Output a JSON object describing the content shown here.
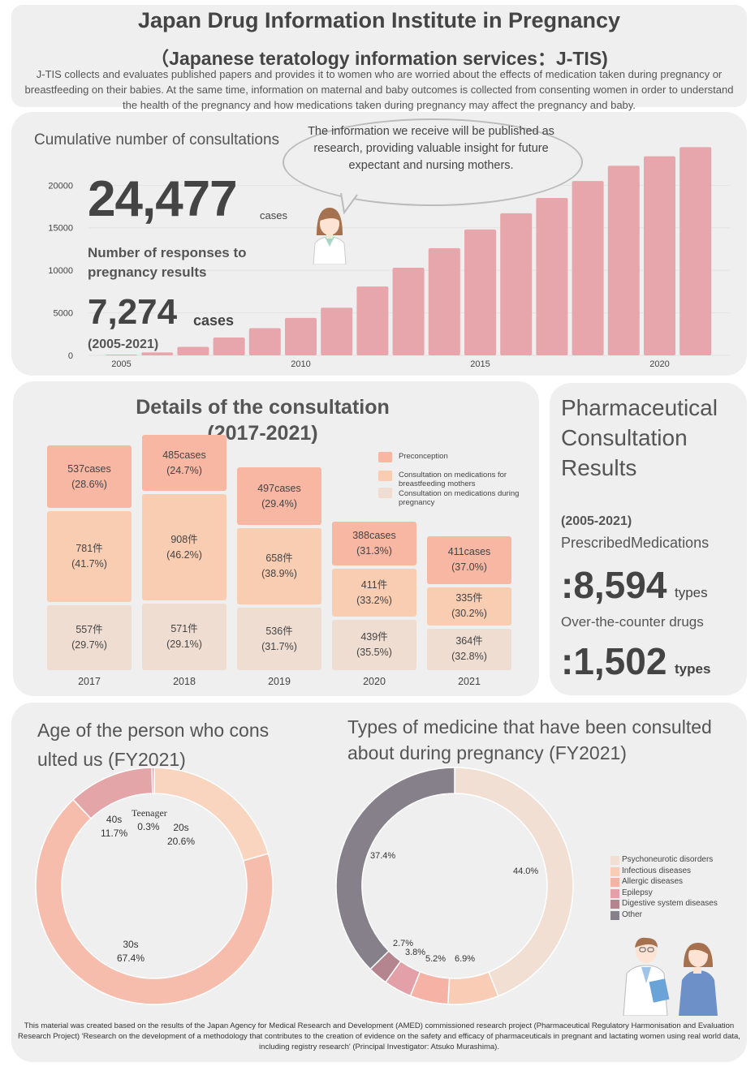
{
  "header": {
    "title": "Japan Drug Information Institute in Pregnancy",
    "subtitle": "（Japanese teratology information services：J-TIS)",
    "description": "J-TIS collects and evaluates published papers and provides it to women who are worried about the effects of medication taken during pregnancy or breastfeeding on their babies. At the same time, information on maternal and baby outcomes is collected from consenting women in order to understand the health of the pregnancy and how medications taken during pregnancy may affect the pregnancy and baby."
  },
  "cumulative": {
    "title": "Cumulative number of consultations",
    "total": "24,477",
    "total_unit": "cases",
    "responses_label": "Number of responses to pregnancy results",
    "responses": "7,274",
    "responses_unit": "cases",
    "range": "(2005-2021)",
    "bubble": "The information we receive will be published as research, providing valuable insight for future expectant and nursing mothers."
  },
  "chart_data": [
    {
      "type": "bar",
      "x": [
        2005,
        2006,
        2007,
        2008,
        2009,
        2010,
        2011,
        2012,
        2013,
        2014,
        2015,
        2016,
        2017,
        2018,
        2019,
        2020,
        2021
      ],
      "values": [
        80,
        350,
        1000,
        2100,
        3200,
        4400,
        5600,
        8100,
        10300,
        12600,
        14800,
        16700,
        18500,
        20500,
        22300,
        23400,
        24477
      ],
      "y_ticks": [
        0,
        5000,
        10000,
        15000,
        20000
      ],
      "x_ticks": [
        "2005",
        "2010",
        "2015",
        "2020"
      ],
      "ylim": [
        0,
        24800
      ],
      "color": "#e6a6ab"
    },
    {
      "type": "bar",
      "stacked": true,
      "title": "Details of the consultation (2017-2021)",
      "categories": [
        "2017",
        "2018",
        "2019",
        "2020",
        "2021"
      ],
      "series": [
        {
          "name": "Consultation on medications during pregnancy",
          "values": [
            557,
            571,
            536,
            439,
            364
          ],
          "labels": [
            "557件",
            "571件",
            "536件",
            "439件",
            "364件"
          ],
          "percents": [
            "(29.7%)",
            "(29.1%)",
            "(31.7%)",
            "(35.5%)",
            "(32.8%)"
          ],
          "color": "#f0ddd1"
        },
        {
          "name": "Consultation on medications for breastfeeding mothers",
          "values": [
            781,
            908,
            658,
            411,
            335
          ],
          "labels": [
            "781件",
            "908件",
            "658件",
            "411件",
            "335件"
          ],
          "percents": [
            "(41.7%)",
            "(46.2%)",
            "(38.9%)",
            "(33.2%)",
            "(30.2%)"
          ],
          "color": "#f8cdb2"
        },
        {
          "name": "Preconception",
          "values": [
            537,
            485,
            497,
            388,
            411
          ],
          "labels": [
            "537cases",
            "485cases",
            "497cases",
            "388cases",
            "411cases"
          ],
          "percents": [
            "(28.6%)",
            "(24.7%)",
            "(29.4%)",
            "(31.3%)",
            "(37.0%)"
          ],
          "color": "#f7b7a3"
        }
      ]
    },
    {
      "type": "pie",
      "title": "Age of the person who cons ulted us (FY2021)",
      "slices": [
        {
          "label": "20s",
          "value": 20.6,
          "text": "20.6%",
          "color": "#f9d5bf"
        },
        {
          "label": "30s",
          "value": 67.4,
          "text": "67.4%",
          "color": "#f7bdac"
        },
        {
          "label": "40s",
          "value": 11.7,
          "text": "11.7%",
          "color": "#e4a5a8"
        },
        {
          "label": "Teenager",
          "value": 0.3,
          "text": "0.3%",
          "color": "#d89a9e"
        }
      ]
    },
    {
      "type": "pie",
      "title": "Types of medicine that have been consulted about during pregnancy (FY2021)",
      "slices": [
        {
          "label": "Psychoneurotic disorders",
          "value": 44.0,
          "text": "44.0%",
          "color": "#f1dfd4"
        },
        {
          "label": "Infectious diseases",
          "value": 6.9,
          "text": "6.9%",
          "color": "#f8ccb5"
        },
        {
          "label": "Allergic diseases",
          "value": 5.2,
          "text": "5.2%",
          "color": "#f5b2a5"
        },
        {
          "label": "Epilepsy",
          "value": 3.8,
          "text": "3.8%",
          "color": "#e3a0a8"
        },
        {
          "label": "Digestive system diseases",
          "value": 2.7,
          "text": "2.7%",
          "color": "#b4858e"
        },
        {
          "label": "Other",
          "value": 37.4,
          "text": "37.4%",
          "color": "#85808a"
        }
      ]
    }
  ],
  "details": {
    "title_line1": "Details of the consultation",
    "title_line2": "(2017-2021)",
    "legend": [
      "Preconception",
      "Consultation on medications for breastfeeding mothers",
      "Consultation on medications during pregnancy"
    ]
  },
  "results": {
    "title": "Pharmaceutical Consultation Results",
    "range": "(2005-2021)",
    "rx_label": "PrescribedMedications",
    "rx_value": ":8,594",
    "rx_unit": "types",
    "otc_label": "Over-the-counter drugs",
    "otc_value": ":1,502",
    "otc_unit": "types"
  },
  "age": {
    "title_line1": "Age of the person who cons",
    "title_line2": "ulted us (FY2021)"
  },
  "medicine": {
    "title_line1": "Types of medicine that have been consulted",
    "title_line2": "about during pregnancy (FY2021)"
  },
  "footer": "This material was created based on the results of the Japan Agency for Medical Research and Development (AMED) commissioned research project (Pharmaceutical Regulatory Harmonisation and Evaluation Research Project) 'Research on the development of a methodology that contributes to the creation of evidence on the safety and efficacy of pharmaceuticals in pregnant and lactating women using real world data, including registry research' (Principal Investigator: Atsuko Murashima)."
}
